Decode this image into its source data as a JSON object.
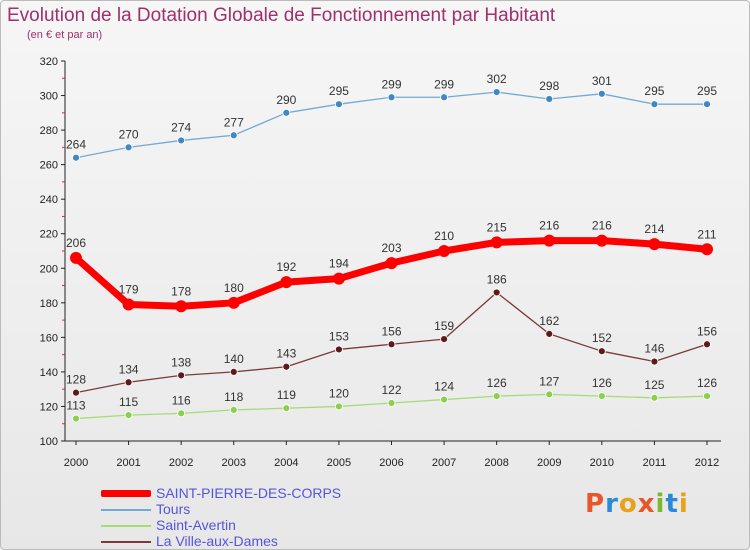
{
  "title": "Evolution de la Dotation Globale de Fonctionnement par Habitant",
  "subtitle": "(en € et par an)",
  "logo": {
    "text": "Proxiti",
    "letters": [
      {
        "ch": "P",
        "color": "#e8572a"
      },
      {
        "ch": "r",
        "color": "#2a8ad6"
      },
      {
        "ch": "o",
        "color": "#e8a21a"
      },
      {
        "ch": "x",
        "color": "#e8572a"
      },
      {
        "ch": "i",
        "color": "#7cb82f"
      },
      {
        "ch": "t",
        "color": "#2a8ad6"
      },
      {
        "ch": "i",
        "color": "#e8a21a"
      }
    ]
  },
  "chart_data": {
    "type": "line",
    "x": [
      "2000",
      "2001",
      "2002",
      "2003",
      "2004",
      "2005",
      "2006",
      "2007",
      "2008",
      "2009",
      "2010",
      "2011",
      "2012"
    ],
    "ylim": [
      100,
      320
    ],
    "yticks": [
      100,
      120,
      140,
      160,
      180,
      200,
      220,
      240,
      260,
      280,
      300,
      320
    ],
    "grid": false,
    "legend_position": "bottom-left",
    "series": [
      {
        "name": "SAINT-PIERRE-DES-CORPS",
        "color": "#ff0000",
        "point_color": "#ff0000",
        "width": 7,
        "radius": 6,
        "values": [
          206,
          179,
          178,
          180,
          192,
          194,
          203,
          210,
          215,
          216,
          216,
          214,
          211
        ]
      },
      {
        "name": "Tours",
        "color": "#74a9d6",
        "point_color": "#3f87c7",
        "width": 1.3,
        "radius": 3.5,
        "values": [
          264,
          270,
          274,
          277,
          290,
          295,
          299,
          299,
          302,
          298,
          301,
          295,
          295
        ]
      },
      {
        "name": "Saint-Avertin",
        "color": "#a6dc78",
        "point_color": "#8bd04c",
        "width": 1.3,
        "radius": 3.5,
        "values": [
          113,
          115,
          116,
          118,
          119,
          120,
          122,
          124,
          126,
          127,
          126,
          125,
          126
        ]
      },
      {
        "name": "La Ville-aux-Dames",
        "color": "#7a3a3a",
        "point_color": "#5c1a1a",
        "width": 1.3,
        "radius": 3.5,
        "values": [
          128,
          134,
          138,
          140,
          143,
          153,
          156,
          159,
          186,
          162,
          152,
          146,
          156
        ]
      }
    ]
  }
}
